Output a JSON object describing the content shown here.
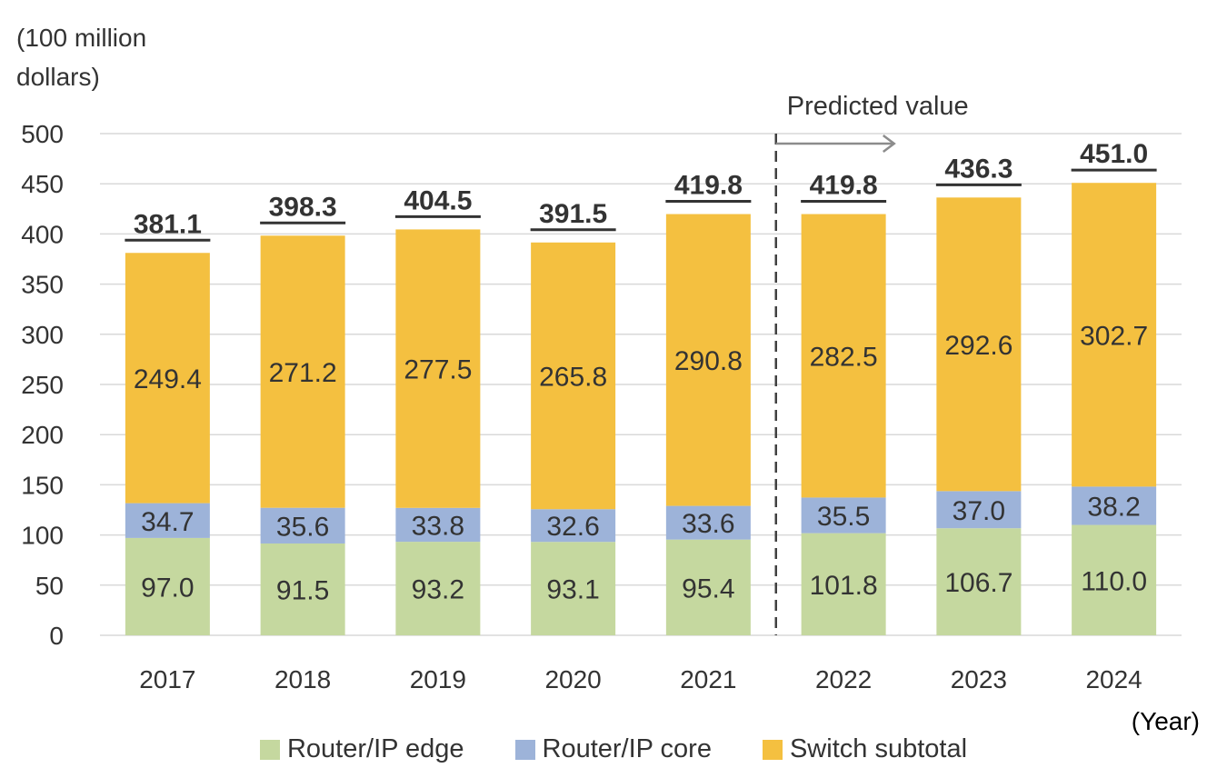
{
  "chart_data": {
    "type": "bar",
    "stacked": true,
    "unit_label": "(100 million\ndollars)",
    "x_unit_label": "(Year)",
    "annotation": "Predicted value",
    "predicted_from": "2022",
    "categories": [
      "2017",
      "2018",
      "2019",
      "2020",
      "2021",
      "2022",
      "2023",
      "2024"
    ],
    "series": [
      {
        "name": "Router/IP edge",
        "color": "#c5d89f",
        "values": [
          97.0,
          91.5,
          93.2,
          93.1,
          95.4,
          101.8,
          106.7,
          110.0
        ]
      },
      {
        "name": "Router/IP core",
        "color": "#9db3d9",
        "values": [
          34.7,
          35.6,
          33.8,
          32.6,
          33.6,
          35.5,
          37.0,
          38.2
        ]
      },
      {
        "name": "Switch subtotal",
        "color": "#f4c040",
        "values": [
          249.4,
          271.2,
          277.5,
          265.8,
          290.8,
          282.5,
          292.6,
          302.7
        ]
      }
    ],
    "totals": [
      381.1,
      398.3,
      404.5,
      391.5,
      419.8,
      419.8,
      436.3,
      451.0
    ],
    "ylim": [
      0,
      500
    ],
    "yticks": [
      0,
      50,
      100,
      150,
      200,
      250,
      300,
      350,
      400,
      450,
      500
    ],
    "grid": true,
    "legend_position": "bottom"
  }
}
